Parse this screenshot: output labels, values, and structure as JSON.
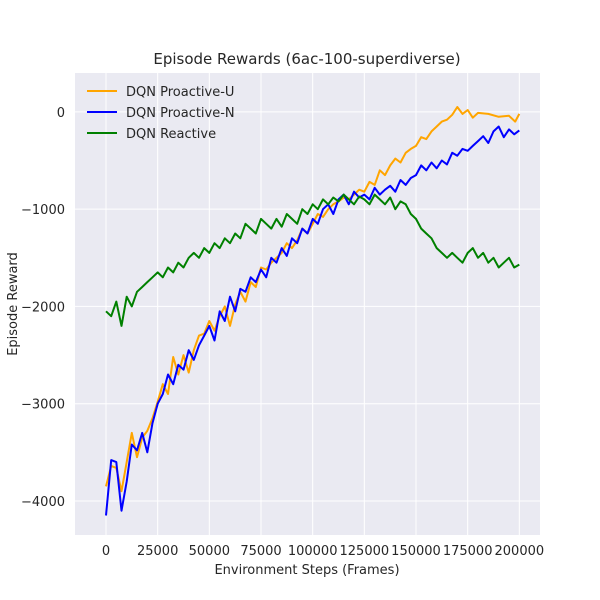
{
  "chart_data": {
    "type": "line",
    "title": "Episode Rewards (6ac-100-superdiverse)",
    "xlabel": "Environment Steps (Frames)",
    "ylabel": "Episode Reward",
    "xlim": [
      -15000,
      210000
    ],
    "ylim": [
      -4350,
      400
    ],
    "xticks": [
      0,
      25000,
      50000,
      75000,
      100000,
      125000,
      150000,
      175000,
      200000
    ],
    "yticks": [
      -4000,
      -3000,
      -2000,
      -1000,
      0
    ],
    "grid": true,
    "legend_position": "top-left",
    "series": [
      {
        "name": "DQN Proactive-U",
        "color": "#ffa500",
        "x": [
          0,
          2500,
          5000,
          7500,
          10000,
          12500,
          15000,
          17500,
          20000,
          22500,
          25000,
          27500,
          30000,
          32500,
          35000,
          37500,
          40000,
          42500,
          45000,
          47500,
          50000,
          52500,
          55000,
          57500,
          60000,
          62500,
          65000,
          67500,
          70000,
          72500,
          75000,
          77500,
          80000,
          82500,
          85000,
          87500,
          90000,
          92500,
          95000,
          97500,
          100000,
          102500,
          105000,
          107500,
          110000,
          112500,
          115000,
          117500,
          120000,
          122500,
          125000,
          127500,
          130000,
          132500,
          135000,
          137500,
          140000,
          142500,
          145000,
          147500,
          150000,
          152500,
          155000,
          157500,
          160000,
          162500,
          165000,
          167500,
          170000,
          172500,
          175000,
          177500,
          180000,
          185000,
          190000,
          195000,
          198000,
          200000
        ],
        "y": [
          -3850,
          -3640,
          -3660,
          -3900,
          -3600,
          -3300,
          -3550,
          -3350,
          -3280,
          -3150,
          -2980,
          -2800,
          -2900,
          -2520,
          -2700,
          -2500,
          -2680,
          -2450,
          -2300,
          -2280,
          -2150,
          -2250,
          -2100,
          -2000,
          -2200,
          -1980,
          -1850,
          -1950,
          -1750,
          -1800,
          -1600,
          -1620,
          -1550,
          -1500,
          -1450,
          -1350,
          -1400,
          -1320,
          -1200,
          -1250,
          -1150,
          -1050,
          -1080,
          -1000,
          -950,
          -920,
          -880,
          -900,
          -850,
          -800,
          -820,
          -720,
          -750,
          -600,
          -650,
          -550,
          -480,
          -520,
          -420,
          -380,
          -350,
          -260,
          -280,
          -200,
          -150,
          -100,
          -80,
          -30,
          50,
          -20,
          20,
          -60,
          -10,
          -20,
          -50,
          -40,
          -100,
          -20
        ]
      },
      {
        "name": "DQN Proactive-N",
        "color": "#0000ff",
        "x": [
          0,
          2500,
          5000,
          7500,
          10000,
          12500,
          15000,
          17500,
          20000,
          22500,
          25000,
          27500,
          30000,
          32500,
          35000,
          37500,
          40000,
          42500,
          45000,
          47500,
          50000,
          52500,
          55000,
          57500,
          60000,
          62500,
          65000,
          67500,
          70000,
          72500,
          75000,
          77500,
          80000,
          82500,
          85000,
          87500,
          90000,
          92500,
          95000,
          97500,
          100000,
          102500,
          105000,
          107500,
          110000,
          112500,
          115000,
          117500,
          120000,
          122500,
          125000,
          127500,
          130000,
          132500,
          135000,
          137500,
          140000,
          142500,
          145000,
          147500,
          150000,
          152500,
          155000,
          157500,
          160000,
          162500,
          165000,
          167500,
          170000,
          172500,
          175000,
          177500,
          180000,
          182500,
          185000,
          187500,
          190000,
          192500,
          195000,
          197500,
          200000
        ],
        "y": [
          -4150,
          -3580,
          -3600,
          -4100,
          -3800,
          -3420,
          -3480,
          -3300,
          -3500,
          -3200,
          -3000,
          -2900,
          -2700,
          -2800,
          -2600,
          -2650,
          -2450,
          -2550,
          -2400,
          -2300,
          -2200,
          -2350,
          -2050,
          -2150,
          -1900,
          -2050,
          -1820,
          -1850,
          -1700,
          -1750,
          -1620,
          -1700,
          -1500,
          -1550,
          -1400,
          -1480,
          -1300,
          -1350,
          -1200,
          -1250,
          -1100,
          -1150,
          -1000,
          -950,
          -1050,
          -900,
          -850,
          -950,
          -820,
          -880,
          -850,
          -900,
          -780,
          -850,
          -800,
          -760,
          -820,
          -700,
          -750,
          -680,
          -650,
          -550,
          -600,
          -520,
          -580,
          -500,
          -540,
          -420,
          -450,
          -380,
          -400,
          -350,
          -300,
          -250,
          -320,
          -200,
          -150,
          -260,
          -180,
          -230,
          -190
        ]
      },
      {
        "name": "DQN Reactive",
        "color": "#008000",
        "x": [
          0,
          2500,
          5000,
          7500,
          10000,
          12500,
          15000,
          17500,
          20000,
          22500,
          25000,
          27500,
          30000,
          32500,
          35000,
          37500,
          40000,
          42500,
          45000,
          47500,
          50000,
          52500,
          55000,
          57500,
          60000,
          62500,
          65000,
          67500,
          70000,
          72500,
          75000,
          77500,
          80000,
          82500,
          85000,
          87500,
          90000,
          92500,
          95000,
          97500,
          100000,
          102500,
          105000,
          107500,
          110000,
          112500,
          115000,
          117500,
          120000,
          122500,
          125000,
          127500,
          130000,
          132500,
          135000,
          137500,
          140000,
          142500,
          145000,
          147500,
          150000,
          152500,
          155000,
          157500,
          160000,
          162500,
          165000,
          167500,
          170000,
          172500,
          175000,
          177500,
          180000,
          182500,
          185000,
          187500,
          190000,
          192500,
          195000,
          197500,
          200000
        ],
        "y": [
          -2050,
          -2100,
          -1950,
          -2200,
          -1900,
          -2000,
          -1850,
          -1800,
          -1750,
          -1700,
          -1650,
          -1700,
          -1600,
          -1650,
          -1550,
          -1600,
          -1500,
          -1450,
          -1500,
          -1400,
          -1450,
          -1350,
          -1400,
          -1300,
          -1350,
          -1250,
          -1300,
          -1150,
          -1200,
          -1250,
          -1100,
          -1150,
          -1200,
          -1100,
          -1180,
          -1050,
          -1100,
          -1150,
          -1000,
          -1050,
          -950,
          -1000,
          -900,
          -950,
          -880,
          -920,
          -850,
          -900,
          -950,
          -870,
          -900,
          -950,
          -850,
          -900,
          -950,
          -880,
          -1000,
          -920,
          -950,
          -1050,
          -1100,
          -1200,
          -1250,
          -1300,
          -1400,
          -1450,
          -1500,
          -1450,
          -1500,
          -1550,
          -1450,
          -1400,
          -1500,
          -1450,
          -1550,
          -1500,
          -1600,
          -1550,
          -1500,
          -1600,
          -1570
        ]
      }
    ]
  }
}
